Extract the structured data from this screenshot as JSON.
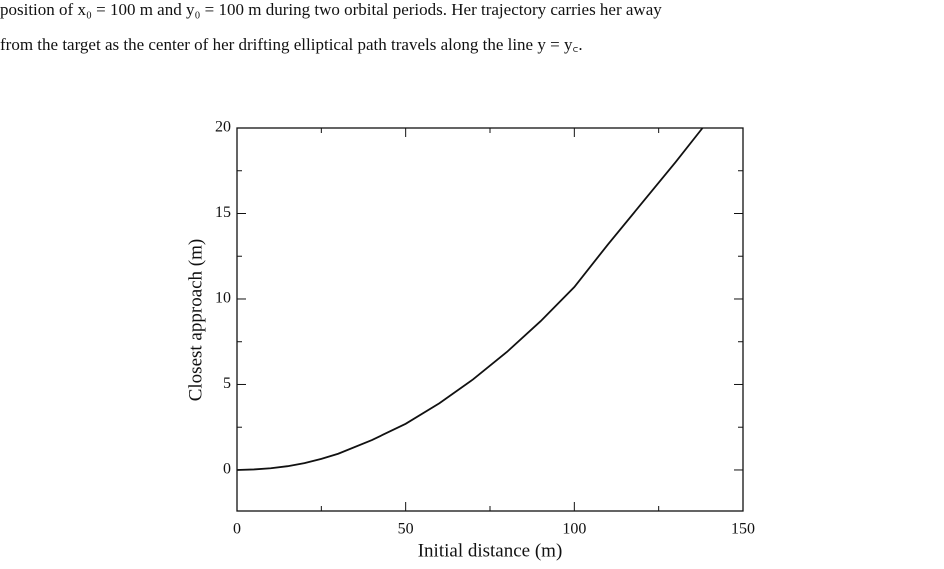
{
  "text": {
    "lines": [
      "position of x₀ = 100 m and y₀ = 100 m during two orbital periods. Her trajectory carries her away",
      "from the target as the center of her drifting elliptical path travels along the line y = y꜀."
    ]
  },
  "chart_data": {
    "type": "line",
    "x_label": "Initial distance (m)",
    "y_label": "Closest approach (m)",
    "x": [
      0,
      5,
      10,
      15,
      20,
      25,
      30,
      40,
      50,
      60,
      70,
      80,
      90,
      100,
      110,
      120,
      130,
      138
    ],
    "series": [
      {
        "color": "#111111",
        "values": [
          0,
          0.03,
          0.1,
          0.22,
          0.4,
          0.65,
          0.95,
          1.75,
          2.7,
          3.9,
          5.3,
          6.9,
          8.7,
          10.7,
          13.2,
          15.6,
          18.0,
          20
        ]
      }
    ],
    "xlim": [
      0,
      150
    ],
    "ylim": [
      -2.4,
      20
    ],
    "xticks": [
      0,
      50,
      100,
      150
    ],
    "yticks": [
      0,
      5,
      10,
      15,
      20
    ],
    "xminor_ticks": [
      25,
      75,
      125
    ],
    "yminor_ticks": [
      2.5,
      7.5,
      12.5,
      17.5
    ]
  }
}
